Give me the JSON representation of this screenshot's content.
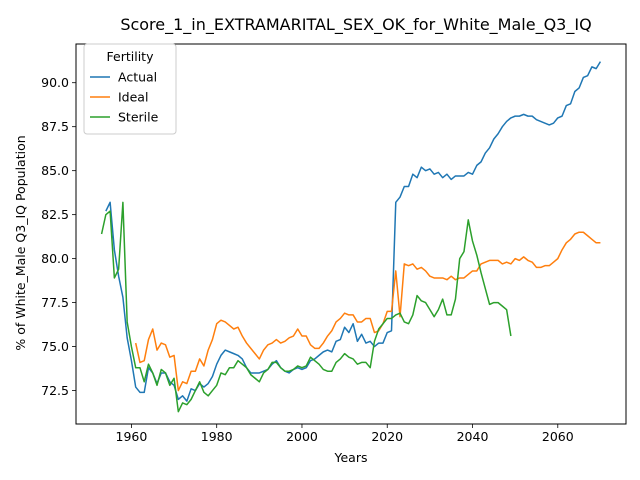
{
  "chart_data": {
    "type": "line",
    "title": "Score_1_in_EXTRAMARITAL_SEX_OK_for_White_Male_Q3_IQ",
    "xlabel": "Years",
    "ylabel": "% of White_Male Q3_IQ Population",
    "xlim": [
      1947,
      2076
    ],
    "ylim": [
      70.6,
      92.2
    ],
    "xticks": [
      1960,
      1980,
      2000,
      2020,
      2040,
      2060
    ],
    "yticks": [
      72.5,
      75.0,
      77.5,
      80.0,
      82.5,
      85.0,
      87.5,
      90.0
    ],
    "ytick_labels": [
      "72.5",
      "75.0",
      "77.5",
      "80.0",
      "82.5",
      "85.0",
      "87.5",
      "90.0"
    ],
    "grid": false,
    "legend": {
      "title": "Fertility",
      "placement": "top-left"
    },
    "series": [
      {
        "name": "Actual",
        "color": "#1f77b4",
        "x": [
          1954,
          1955,
          1956,
          1957,
          1958,
          1959,
          1960,
          1961,
          1962,
          1963,
          1964,
          1965,
          1966,
          1967,
          1968,
          1969,
          1970,
          1971,
          1972,
          1973,
          1974,
          1975,
          1976,
          1977,
          1978,
          1979,
          1980,
          1981,
          1982,
          1983,
          1984,
          1985,
          1986,
          1987,
          1988,
          1989,
          1990,
          1991,
          1992,
          1993,
          1994,
          1995,
          1996,
          1997,
          1998,
          1999,
          2000,
          2001,
          2002,
          2003,
          2004,
          2005,
          2006,
          2007,
          2008,
          2009,
          2010,
          2011,
          2012,
          2013,
          2014,
          2015,
          2016,
          2017,
          2018,
          2019,
          2020,
          2021,
          2022,
          2023,
          2024,
          2025,
          2026,
          2027,
          2028,
          2029,
          2030,
          2031,
          2032,
          2033,
          2034,
          2035,
          2036,
          2037,
          2038,
          2039,
          2040,
          2041,
          2042,
          2043,
          2044,
          2045,
          2046,
          2047,
          2048,
          2049,
          2050,
          2051,
          2052,
          2053,
          2054,
          2055,
          2056,
          2057,
          2058,
          2059,
          2060,
          2061,
          2062,
          2063,
          2064,
          2065,
          2066,
          2067,
          2068,
          2069,
          2070
        ],
        "y": [
          82.7,
          83.2,
          80.5,
          79.0,
          77.8,
          75.5,
          74.2,
          72.7,
          72.4,
          72.4,
          73.8,
          73.5,
          72.9,
          73.5,
          73.5,
          73.0,
          72.8,
          72.0,
          72.2,
          71.9,
          72.6,
          72.5,
          72.9,
          72.7,
          72.9,
          73.3,
          74.0,
          74.5,
          74.8,
          74.7,
          74.6,
          74.5,
          74.3,
          73.8,
          73.5,
          73.5,
          73.5,
          73.6,
          73.7,
          74.0,
          74.2,
          73.8,
          73.6,
          73.5,
          73.7,
          73.8,
          73.7,
          73.8,
          74.2,
          74.3,
          74.5,
          74.7,
          74.8,
          74.7,
          75.3,
          75.4,
          76.1,
          75.8,
          76.3,
          75.3,
          75.7,
          75.2,
          75.3,
          75.0,
          75.2,
          75.2,
          75.8,
          75.9,
          83.2,
          83.5,
          84.1,
          84.1,
          84.8,
          84.6,
          85.2,
          85.0,
          85.1,
          84.8,
          84.9,
          84.6,
          84.8,
          84.5,
          84.7,
          84.7,
          84.7,
          84.9,
          84.8,
          85.3,
          85.5,
          86.0,
          86.3,
          86.8,
          87.1,
          87.5,
          87.8,
          88.0,
          88.1,
          88.1,
          88.2,
          88.1,
          88.1,
          87.9,
          87.8,
          87.7,
          87.6,
          87.7,
          88.0,
          88.1,
          88.7,
          88.8,
          89.5,
          89.7,
          90.3,
          90.4,
          90.9,
          90.8,
          91.2
        ]
      },
      {
        "name": "Ideal",
        "color": "#ff7f0e",
        "x": [
          1961,
          1962,
          1963,
          1964,
          1965,
          1966,
          1967,
          1968,
          1969,
          1970,
          1971,
          1972,
          1973,
          1974,
          1975,
          1976,
          1977,
          1978,
          1979,
          1980,
          1981,
          1982,
          1983,
          1984,
          1985,
          1986,
          1987,
          1988,
          1989,
          1990,
          1991,
          1992,
          1993,
          1994,
          1995,
          1996,
          1997,
          1998,
          1999,
          2000,
          2001,
          2002,
          2003,
          2004,
          2005,
          2006,
          2007,
          2008,
          2009,
          2010,
          2011,
          2012,
          2013,
          2014,
          2015,
          2016,
          2017,
          2018,
          2019,
          2020,
          2021,
          2022,
          2023,
          2024,
          2025,
          2026,
          2027,
          2028,
          2029,
          2030,
          2031,
          2032,
          2033,
          2034,
          2035,
          2036,
          2037,
          2038,
          2039,
          2040,
          2041,
          2042,
          2043,
          2044,
          2045,
          2046,
          2047,
          2048,
          2049,
          2050,
          2051,
          2052,
          2053,
          2054,
          2055,
          2056,
          2057,
          2058,
          2059,
          2060,
          2061,
          2062,
          2063,
          2064,
          2065,
          2066,
          2067,
          2068,
          2069,
          2070
        ],
        "y": [
          75.2,
          74.1,
          74.2,
          75.4,
          76.0,
          74.8,
          75.2,
          75.1,
          74.4,
          74.5,
          72.5,
          73.0,
          72.9,
          73.6,
          73.6,
          74.3,
          73.9,
          74.8,
          75.4,
          76.3,
          76.5,
          76.4,
          76.2,
          76.0,
          76.1,
          75.6,
          75.2,
          74.9,
          74.6,
          74.3,
          74.8,
          75.1,
          75.2,
          75.4,
          75.2,
          75.3,
          75.5,
          75.6,
          76.0,
          75.6,
          75.6,
          75.1,
          74.9,
          74.9,
          75.2,
          75.6,
          75.9,
          76.4,
          76.6,
          76.9,
          76.8,
          76.8,
          76.4,
          76.4,
          76.6,
          76.6,
          75.8,
          75.9,
          76.3,
          77.0,
          77.0,
          79.3,
          76.7,
          79.7,
          79.6,
          79.7,
          79.4,
          79.5,
          79.3,
          79.0,
          78.9,
          78.9,
          78.9,
          78.8,
          79.0,
          78.8,
          78.9,
          78.9,
          79.1,
          79.3,
          79.3,
          79.7,
          79.8,
          79.9,
          79.9,
          79.9,
          79.7,
          79.8,
          79.7,
          80.0,
          79.9,
          80.1,
          79.9,
          79.8,
          79.5,
          79.5,
          79.6,
          79.6,
          79.8,
          80.0,
          80.5,
          80.9,
          81.1,
          81.4,
          81.5,
          81.5,
          81.3,
          81.1,
          80.9,
          80.9
        ]
      },
      {
        "name": "Sterile",
        "color": "#2ca02c",
        "x": [
          1953,
          1954,
          1955,
          1956,
          1957,
          1958,
          1959,
          1960,
          1961,
          1962,
          1963,
          1964,
          1965,
          1966,
          1967,
          1968,
          1969,
          1970,
          1971,
          1972,
          1973,
          1974,
          1975,
          1976,
          1977,
          1978,
          1979,
          1980,
          1981,
          1982,
          1983,
          1984,
          1985,
          1986,
          1987,
          1988,
          1989,
          1990,
          1991,
          1992,
          1993,
          1994,
          1995,
          1996,
          1997,
          1998,
          1999,
          2000,
          2001,
          2002,
          2003,
          2004,
          2005,
          2006,
          2007,
          2008,
          2009,
          2010,
          2011,
          2012,
          2013,
          2014,
          2015,
          2016,
          2017,
          2018,
          2019,
          2020,
          2021,
          2022,
          2023,
          2024,
          2025,
          2026,
          2027,
          2028,
          2029,
          2030,
          2031,
          2032,
          2033,
          2034,
          2035,
          2036,
          2037,
          2038,
          2039,
          2040,
          2041,
          2042,
          2043,
          2044,
          2045,
          2046,
          2047,
          2048,
          2049
        ],
        "y": [
          81.4,
          82.5,
          82.7,
          78.9,
          79.4,
          83.2,
          76.4,
          75.0,
          73.8,
          73.8,
          73.0,
          74.0,
          73.5,
          72.8,
          73.7,
          73.5,
          72.8,
          73.2,
          71.3,
          71.8,
          71.7,
          72.0,
          72.5,
          73.0,
          72.4,
          72.2,
          72.5,
          72.8,
          73.5,
          73.4,
          73.8,
          73.8,
          74.2,
          74.0,
          73.8,
          73.4,
          73.2,
          73.0,
          73.5,
          73.7,
          74.1,
          74.1,
          73.8,
          73.6,
          73.6,
          73.7,
          73.9,
          73.8,
          73.9,
          74.4,
          74.2,
          74.0,
          73.7,
          73.6,
          73.6,
          74.1,
          74.3,
          74.6,
          74.4,
          74.3,
          74.0,
          74.1,
          74.1,
          73.8,
          75.3,
          76.0,
          76.3,
          76.6,
          76.6,
          76.8,
          76.9,
          76.4,
          76.3,
          76.8,
          77.9,
          77.6,
          77.5,
          77.1,
          76.7,
          77.1,
          77.7,
          76.8,
          76.8,
          77.7,
          80.0,
          80.4,
          82.2,
          81.0,
          80.2,
          79.2,
          78.3,
          77.4,
          77.5,
          77.5,
          77.3,
          77.1,
          75.6
        ]
      }
    ]
  }
}
